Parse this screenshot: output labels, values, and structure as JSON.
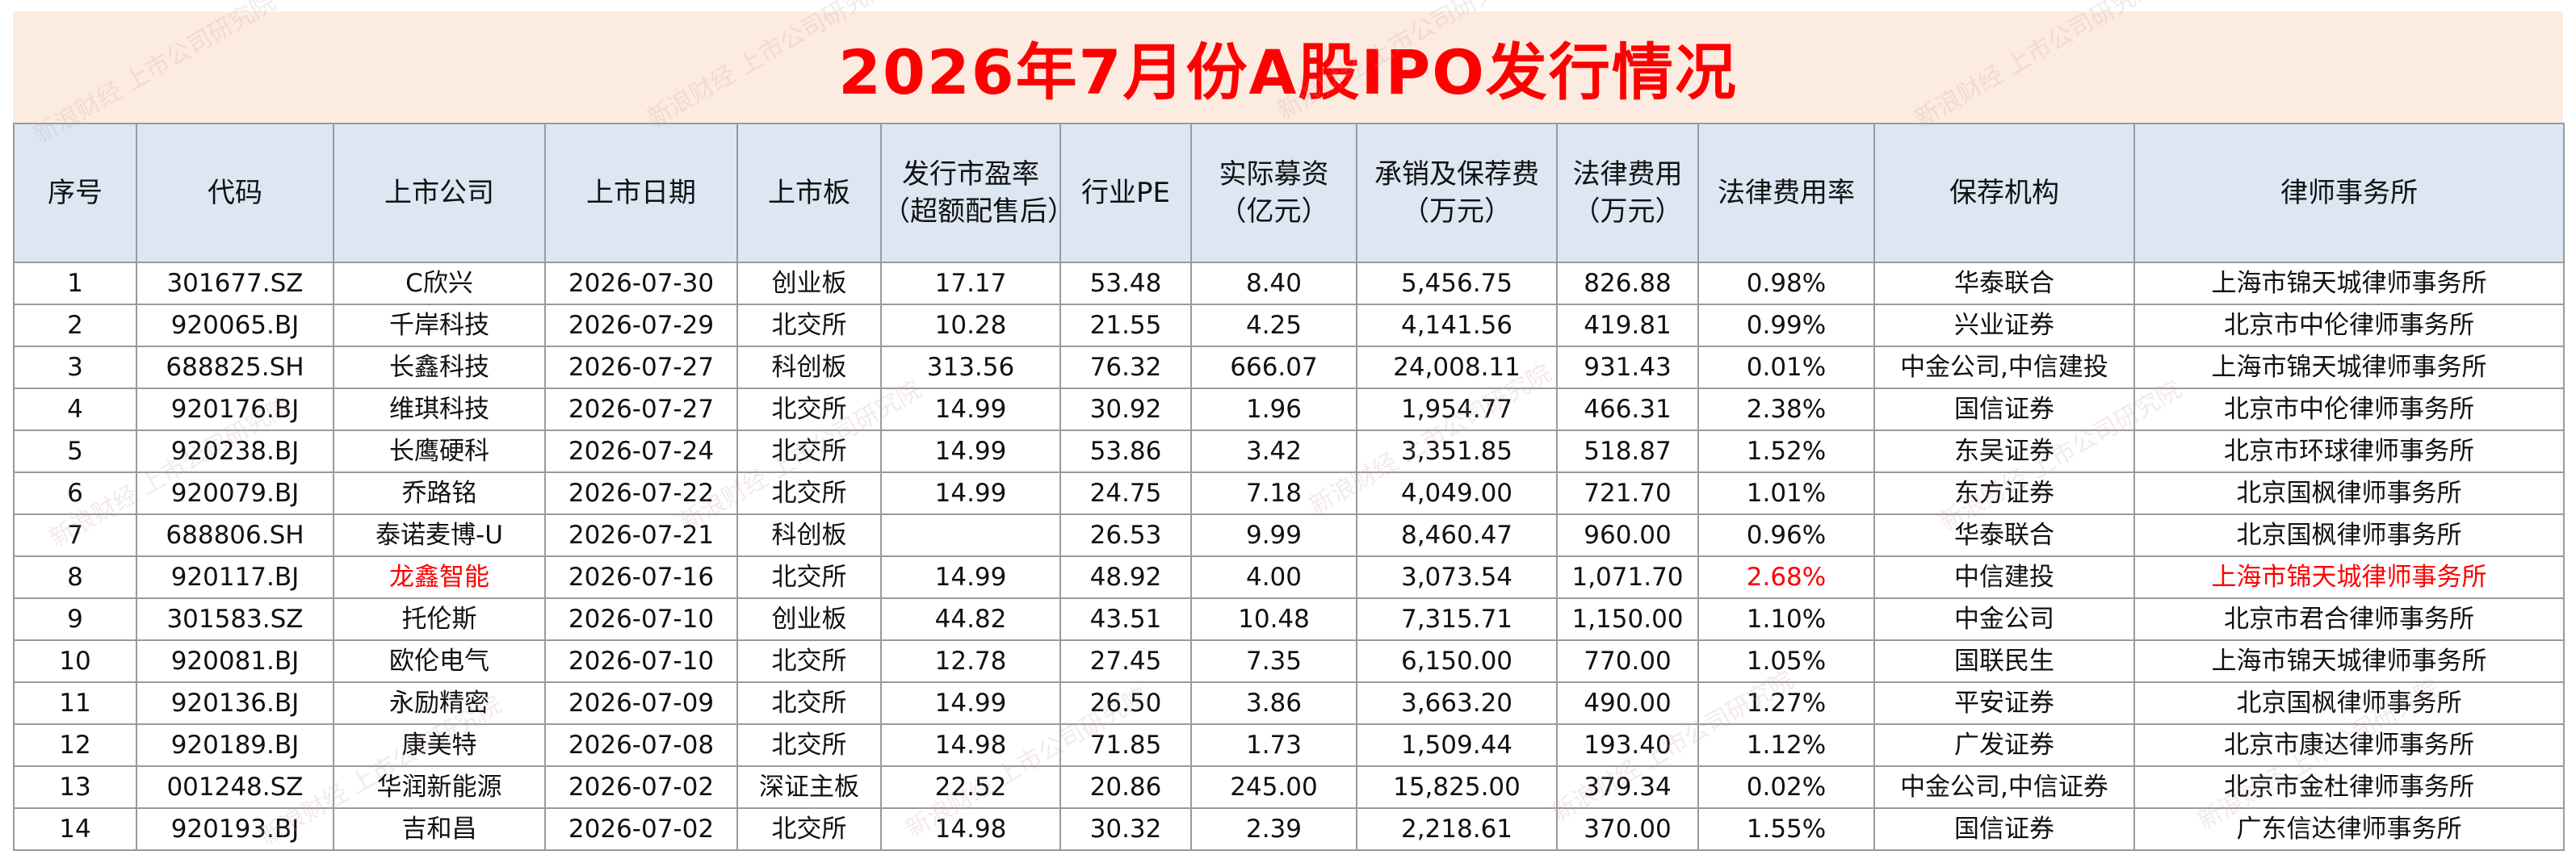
{
  "title": "2026年7月份A股IPO发行情况",
  "header": {
    "seq": "序号",
    "code": "代码",
    "company": "上市公司",
    "date": "上市日期",
    "board": "上市板",
    "pe_issue_1": "发行市盈率",
    "pe_issue_2": "（超额配售后）",
    "pe_industry": "行业PE",
    "raised_1": "实际募资",
    "raised_2": "（亿元）",
    "underwriting_1": "承销及保荐费",
    "underwriting_2": "（万元）",
    "legal_fee_1": "法律费用",
    "legal_fee_2": "（万元）",
    "legal_rate": "法律费用率",
    "sponsor": "保荐机构",
    "law_firm": "律师事务所"
  },
  "rows": [
    {
      "seq": "1",
      "code": "301677.SZ",
      "company": "C欣兴",
      "date": "2026-07-30",
      "board": "创业板",
      "pe_issue": "17.17",
      "pe_industry": "53.48",
      "raised": "8.40",
      "underwriting": "5,456.75",
      "legal_fee": "826.88",
      "legal_rate": "0.98%",
      "sponsor": "华泰联合",
      "law_firm": "上海市锦天城律师事务所"
    },
    {
      "seq": "2",
      "code": "920065.BJ",
      "company": "千岸科技",
      "date": "2026-07-29",
      "board": "北交所",
      "pe_issue": "10.28",
      "pe_industry": "21.55",
      "raised": "4.25",
      "underwriting": "4,141.56",
      "legal_fee": "419.81",
      "legal_rate": "0.99%",
      "sponsor": "兴业证券",
      "law_firm": "北京市中伦律师事务所"
    },
    {
      "seq": "3",
      "code": "688825.SH",
      "company": "长鑫科技",
      "date": "2026-07-27",
      "board": "科创板",
      "pe_issue": "313.56",
      "pe_industry": "76.32",
      "raised": "666.07",
      "underwriting": "24,008.11",
      "legal_fee": "931.43",
      "legal_rate": "0.01%",
      "sponsor": "中金公司,中信建投",
      "law_firm": "上海市锦天城律师事务所"
    },
    {
      "seq": "4",
      "code": "920176.BJ",
      "company": "维琪科技",
      "date": "2026-07-27",
      "board": "北交所",
      "pe_issue": "14.99",
      "pe_industry": "30.92",
      "raised": "1.96",
      "underwriting": "1,954.77",
      "legal_fee": "466.31",
      "legal_rate": "2.38%",
      "sponsor": "国信证券",
      "law_firm": "北京市中伦律师事务所"
    },
    {
      "seq": "5",
      "code": "920238.BJ",
      "company": "长鹰硬科",
      "date": "2026-07-24",
      "board": "北交所",
      "pe_issue": "14.99",
      "pe_industry": "53.86",
      "raised": "3.42",
      "underwriting": "3,351.85",
      "legal_fee": "518.87",
      "legal_rate": "1.52%",
      "sponsor": "东吴证券",
      "law_firm": "北京市环球律师事务所"
    },
    {
      "seq": "6",
      "code": "920079.BJ",
      "company": "乔路铭",
      "date": "2026-07-22",
      "board": "北交所",
      "pe_issue": "14.99",
      "pe_industry": "24.75",
      "raised": "7.18",
      "underwriting": "4,049.00",
      "legal_fee": "721.70",
      "legal_rate": "1.01%",
      "sponsor": "东方证券",
      "law_firm": "北京国枫律师事务所"
    },
    {
      "seq": "7",
      "code": "688806.SH",
      "company": "泰诺麦博-U",
      "date": "2026-07-21",
      "board": "科创板",
      "pe_issue": "",
      "pe_industry": "26.53",
      "raised": "9.99",
      "underwriting": "8,460.47",
      "legal_fee": "960.00",
      "legal_rate": "0.96%",
      "sponsor": "华泰联合",
      "law_firm": "北京国枫律师事务所"
    },
    {
      "seq": "8",
      "code": "920117.BJ",
      "company": "龙鑫智能",
      "date": "2026-07-16",
      "board": "北交所",
      "pe_issue": "14.99",
      "pe_industry": "48.92",
      "raised": "4.00",
      "underwriting": "3,073.54",
      "legal_fee": "1,071.70",
      "legal_rate": "2.68%",
      "sponsor": "中信建投",
      "law_firm": "上海市锦天城律师事务所",
      "highlight": true
    },
    {
      "seq": "9",
      "code": "301583.SZ",
      "company": "托伦斯",
      "date": "2026-07-10",
      "board": "创业板",
      "pe_issue": "44.82",
      "pe_industry": "43.51",
      "raised": "10.48",
      "underwriting": "7,315.71",
      "legal_fee": "1,150.00",
      "legal_rate": "1.10%",
      "sponsor": "中金公司",
      "law_firm": "北京市君合律师事务所"
    },
    {
      "seq": "10",
      "code": "920081.BJ",
      "company": "欧伦电气",
      "date": "2026-07-10",
      "board": "北交所",
      "pe_issue": "12.78",
      "pe_industry": "27.45",
      "raised": "7.35",
      "underwriting": "6,150.00",
      "legal_fee": "770.00",
      "legal_rate": "1.05%",
      "sponsor": "国联民生",
      "law_firm": "上海市锦天城律师事务所"
    },
    {
      "seq": "11",
      "code": "920136.BJ",
      "company": "永励精密",
      "date": "2026-07-09",
      "board": "北交所",
      "pe_issue": "14.99",
      "pe_industry": "26.50",
      "raised": "3.86",
      "underwriting": "3,663.20",
      "legal_fee": "490.00",
      "legal_rate": "1.27%",
      "sponsor": "平安证券",
      "law_firm": "北京国枫律师事务所"
    },
    {
      "seq": "12",
      "code": "920189.BJ",
      "company": "康美特",
      "date": "2026-07-08",
      "board": "北交所",
      "pe_issue": "14.98",
      "pe_industry": "71.85",
      "raised": "1.73",
      "underwriting": "1,509.44",
      "legal_fee": "193.40",
      "legal_rate": "1.12%",
      "sponsor": "广发证券",
      "law_firm": "北京市康达律师事务所"
    },
    {
      "seq": "13",
      "code": "001248.SZ",
      "company": "华润新能源",
      "date": "2026-07-02",
      "board": "深证主板",
      "pe_issue": "22.52",
      "pe_industry": "20.86",
      "raised": "245.00",
      "underwriting": "15,825.00",
      "legal_fee": "379.34",
      "legal_rate": "0.02%",
      "sponsor": "中金公司,中信证券",
      "law_firm": "北京市金杜律师事务所"
    },
    {
      "seq": "14",
      "code": "920193.BJ",
      "company": "吉和昌",
      "date": "2026-07-02",
      "board": "北交所",
      "pe_issue": "14.98",
      "pe_industry": "30.32",
      "raised": "2.39",
      "underwriting": "2,218.61",
      "legal_fee": "370.00",
      "legal_rate": "1.55%",
      "sponsor": "国信证券",
      "law_firm": "广东信达律师事务所"
    }
  ],
  "colors": {
    "title": "#ff0000",
    "highlight": "#ff0000",
    "header_bg": "#dce7f3",
    "title_bg": "#fcebe0"
  },
  "watermark": "新浪财经 上市公司研究院"
}
